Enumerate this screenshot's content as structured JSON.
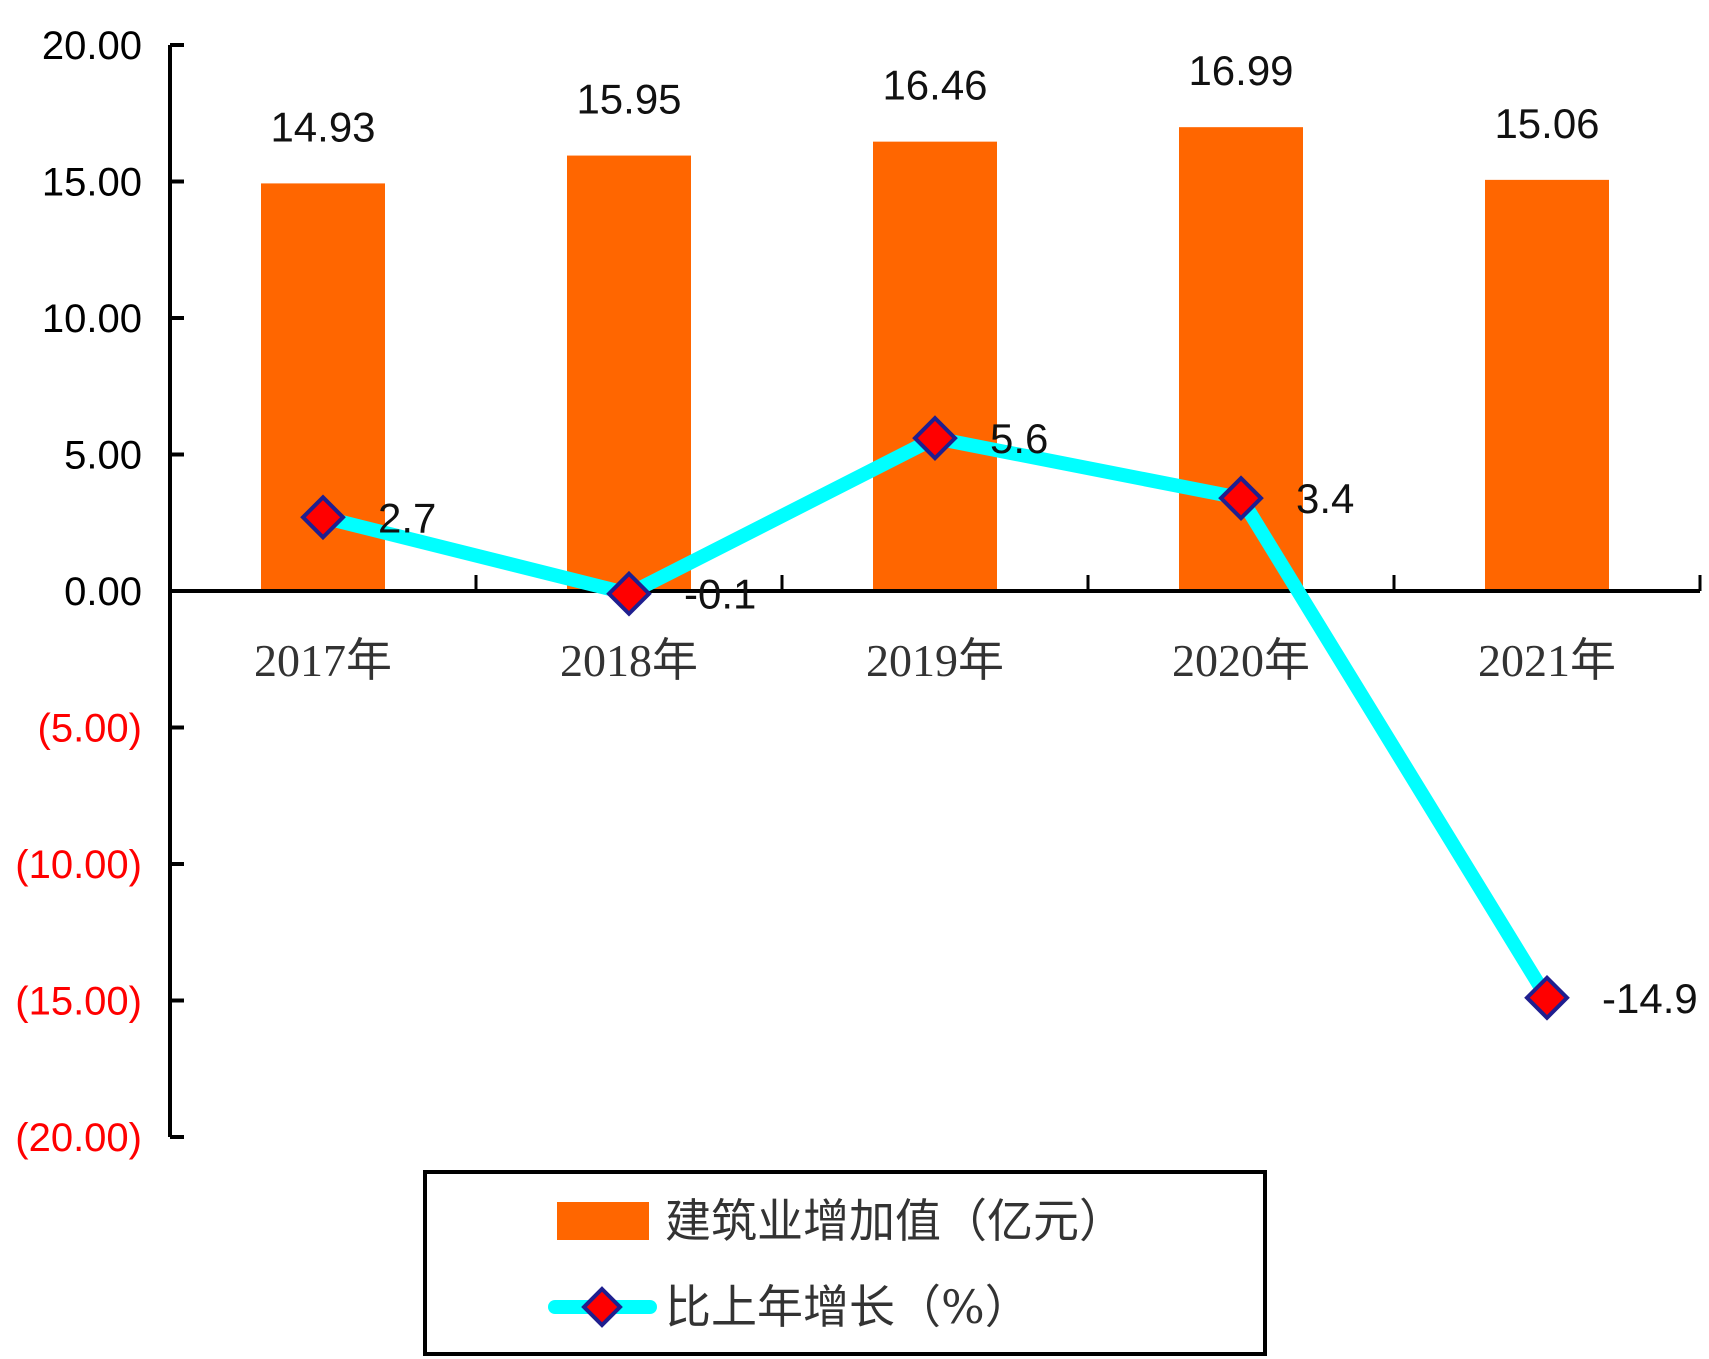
{
  "chart_data": {
    "type": "bar+line",
    "categories": [
      "2017年",
      "2018年",
      "2019年",
      "2020年",
      "2021年"
    ],
    "series": [
      {
        "name": "建筑业增加值（亿元）",
        "type": "bar",
        "values": [
          14.93,
          15.95,
          16.46,
          16.99,
          15.06
        ],
        "labels": [
          "14.93",
          "15.95",
          "16.46",
          "16.99",
          "15.06"
        ],
        "color": "#FF6600"
      },
      {
        "name": "比上年增长（%）",
        "type": "line",
        "values": [
          2.7,
          -0.1,
          5.6,
          3.4,
          -14.9
        ],
        "labels": [
          "2.7",
          "-0.1",
          "5.6",
          "3.4",
          "-14.9"
        ],
        "color": "#00FFFF",
        "marker": "diamond",
        "marker_color": "#FF0000",
        "marker_edge": "#1F1F8F"
      }
    ],
    "y_ticks": [
      20,
      15,
      10,
      5,
      0,
      -5,
      -10,
      -15,
      -20
    ],
    "y_tick_labels": [
      "20.00",
      "15.00",
      "10.00",
      "5.00",
      "0.00",
      "(5.00)",
      "(10.00)",
      "(15.00)",
      "(20.00)"
    ],
    "negative_tick_color": "#FF0000",
    "ylim": [
      -20,
      20
    ],
    "grid": false,
    "legend_position": "bottom"
  }
}
